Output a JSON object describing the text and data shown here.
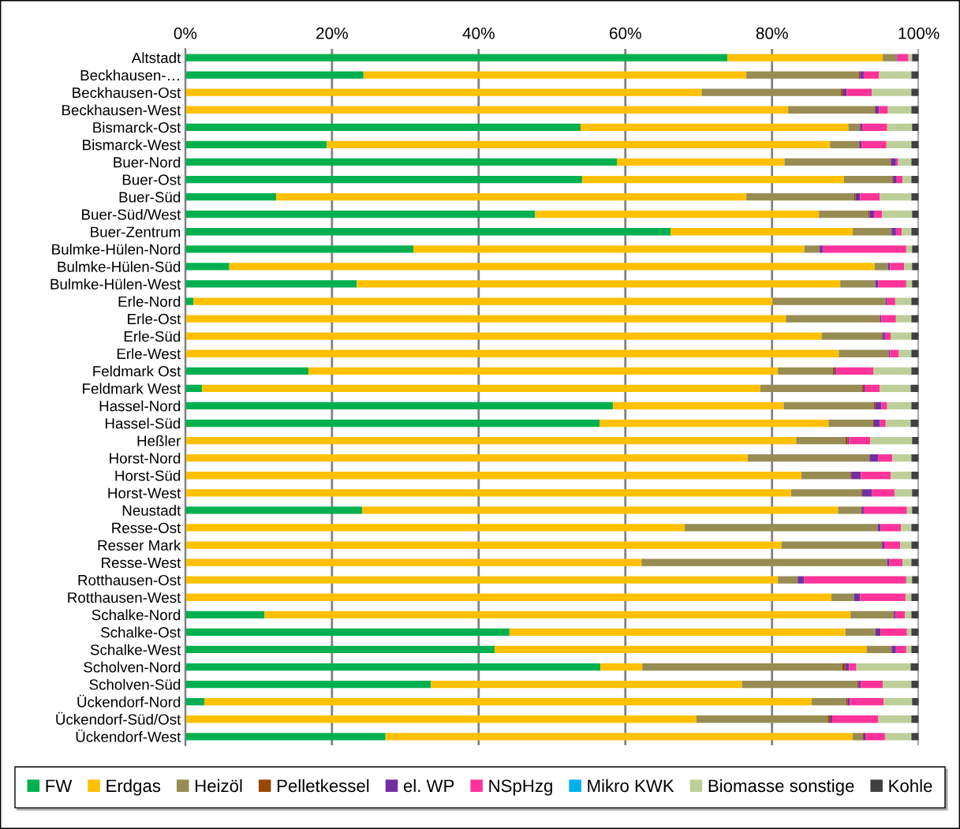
{
  "chart_data": {
    "type": "bar",
    "orientation": "horizontal",
    "stacked": true,
    "categories": [
      "Altstadt",
      "Beckhausen-…",
      "Beckhausen-Ost",
      "Beckhausen-West",
      "Bismarck-Ost",
      "Bismarck-West",
      "Buer-Nord",
      "Buer-Ost",
      "Buer-Süd",
      "Buer-Süd/West",
      "Buer-Zentrum",
      "Bulmke-Hülen-Nord",
      "Bulmke-Hülen-Süd",
      "Bulmke-Hülen-West",
      "Erle-Nord",
      "Erle-Ost",
      "Erle-Süd",
      "Erle-West",
      "Feldmark Ost",
      "Feldmark West",
      "Hassel-Nord",
      "Hassel-Süd",
      "Heßler",
      "Horst-Nord",
      "Horst-Süd",
      "Horst-West",
      "Neustadt",
      "Resse-Ost",
      "Resser Mark",
      "Resse-West",
      "Rotthausen-Ost",
      "Rotthausen-West",
      "Schalke-Nord",
      "Schalke-Ost",
      "Schalke-West",
      "Scholven-Nord",
      "Scholven-Süd",
      "Ückendorf-Nord",
      "Ückendorf-Süd/Ost",
      "Ückendorf-West"
    ],
    "series": [
      {
        "name": "FW",
        "color": "#00b050",
        "values": [
          73.9,
          24.3,
          0,
          0,
          53.9,
          19.3,
          58.9,
          54.1,
          12.4,
          47.7,
          66.2,
          31.1,
          6.0,
          23.4,
          1.1,
          0,
          0,
          0,
          16.8,
          2.3,
          58.3,
          56.5,
          0,
          0,
          0,
          0,
          24.1,
          0,
          0,
          0,
          0,
          0,
          10.8,
          44.2,
          42.2,
          56.6,
          33.5,
          2.6,
          0,
          27.3
        ]
      },
      {
        "name": "Erdgas",
        "color": "#ffc000",
        "values": [
          21.2,
          52.2,
          70.4,
          82.2,
          36.5,
          68.6,
          22.8,
          35.7,
          64.1,
          38.7,
          24.8,
          53.3,
          88.0,
          65.9,
          79.0,
          81.9,
          86.8,
          89.1,
          64.0,
          76.1,
          23.3,
          31.2,
          83.3,
          76.7,
          84.0,
          82.6,
          64.9,
          68.1,
          81.3,
          62.2,
          80.8,
          88.1,
          79.9,
          45.8,
          50.7,
          5.7,
          42.4,
          82.8,
          69.7,
          63.7
        ]
      },
      {
        "name": "Heizöl",
        "color": "#978c53",
        "values": [
          1.9,
          15.3,
          19.0,
          11.8,
          1.5,
          3.9,
          14.4,
          6.6,
          14.7,
          6.7,
          5.3,
          2.1,
          1.8,
          4.8,
          15.4,
          12.7,
          8.2,
          6.8,
          7.5,
          13.9,
          12.3,
          6.1,
          6.7,
          16.5,
          6.7,
          9.6,
          3.2,
          26.3,
          13.7,
          33.5,
          2.7,
          3.1,
          5.9,
          4.1,
          3.4,
          27.3,
          15.7,
          4.7,
          17.9,
          1.4
        ]
      },
      {
        "name": "Pelletkessel",
        "color": "#974706",
        "values": [
          0,
          0.2,
          0.3,
          0.1,
          0.1,
          0.1,
          0.1,
          0.1,
          0.2,
          0.2,
          0,
          0,
          0,
          0,
          0,
          0.1,
          0.1,
          0,
          0.3,
          0.2,
          0.2,
          0.1,
          0.3,
          0.1,
          0.1,
          0.1,
          0,
          0,
          0,
          0,
          0,
          0,
          0,
          0,
          0,
          0.4,
          0.2,
          0.2,
          0.3,
          0.1
        ]
      },
      {
        "name": "el. WP",
        "color": "#7030a0",
        "values": [
          0.1,
          0.5,
          0.5,
          0.5,
          0.3,
          0.3,
          0.7,
          0.5,
          0.6,
          0.6,
          0.6,
          0.4,
          0.3,
          0.4,
          0.2,
          0.2,
          0.3,
          0.2,
          0.2,
          0.2,
          0.8,
          0.8,
          0.2,
          1.2,
          1.3,
          1.3,
          0.3,
          0.4,
          0.3,
          0.3,
          0.9,
          0.8,
          0.2,
          0.7,
          0.6,
          0.5,
          0.3,
          0.3,
          0.3,
          0.3
        ]
      },
      {
        "name": "NSpHzg",
        "color": "#ff3399",
        "values": [
          1.5,
          2.1,
          3.4,
          1.2,
          3.4,
          3.4,
          0.3,
          0.8,
          2.7,
          1.1,
          0.8,
          11.4,
          1.9,
          3.8,
          1.1,
          2.0,
          0.8,
          1.2,
          5.0,
          2.0,
          0.8,
          0.8,
          2.9,
          1.9,
          4.1,
          3.1,
          5.9,
          2.8,
          2.2,
          1.8,
          13.9,
          6.2,
          1.3,
          3.6,
          1.4,
          1.0,
          3.0,
          4.6,
          6.3,
          2.6
        ]
      },
      {
        "name": "Mikro KWK",
        "color": "#00b0f0",
        "values": [
          0,
          0,
          0,
          0,
          0,
          0,
          0,
          0,
          0,
          0,
          0,
          0,
          0,
          0,
          0,
          0,
          0,
          0,
          0,
          0,
          0,
          0,
          0,
          0,
          0,
          0,
          0,
          0,
          0,
          0,
          0,
          0,
          0,
          0,
          0,
          0,
          0,
          0,
          0,
          0
        ]
      },
      {
        "name": "Biomasse sonstige",
        "color": "#bccf98",
        "values": [
          0.5,
          4.4,
          5.4,
          3.2,
          3.4,
          3.4,
          1.8,
          1.2,
          4.3,
          4.1,
          1.3,
          0.8,
          1.1,
          0.8,
          2.2,
          2.1,
          2.8,
          1.7,
          5.2,
          4.2,
          3.3,
          3.4,
          5.7,
          2.6,
          2.8,
          2.4,
          0.7,
          1.4,
          1.5,
          1.2,
          0.8,
          0.8,
          0.9,
          0.6,
          0.7,
          7.4,
          3.9,
          3.9,
          4.5,
          3.6
        ]
      },
      {
        "name": "Kohle",
        "color": "#404040",
        "values": [
          0.9,
          1.0,
          1.0,
          1.0,
          0.9,
          1.0,
          1.0,
          1.0,
          1.0,
          0.9,
          1.0,
          0.9,
          0.9,
          0.9,
          1.0,
          1.0,
          1.0,
          1.0,
          1.0,
          1.1,
          1.0,
          1.1,
          0.9,
          1.0,
          1.0,
          0.9,
          0.9,
          1.0,
          1.0,
          1.0,
          0.9,
          1.0,
          1.0,
          1.0,
          1.0,
          1.1,
          1.0,
          0.9,
          1.0,
          1.0
        ]
      }
    ],
    "xlim": [
      0,
      100
    ],
    "xticks": [
      {
        "value": 0,
        "label": "0%"
      },
      {
        "value": 20,
        "label": "20%"
      },
      {
        "value": 40,
        "label": "40%"
      },
      {
        "value": 60,
        "label": "60%"
      },
      {
        "value": 80,
        "label": "80%"
      },
      {
        "value": 100,
        "label": "100%"
      }
    ],
    "grid": "x",
    "legend": "bottom"
  }
}
